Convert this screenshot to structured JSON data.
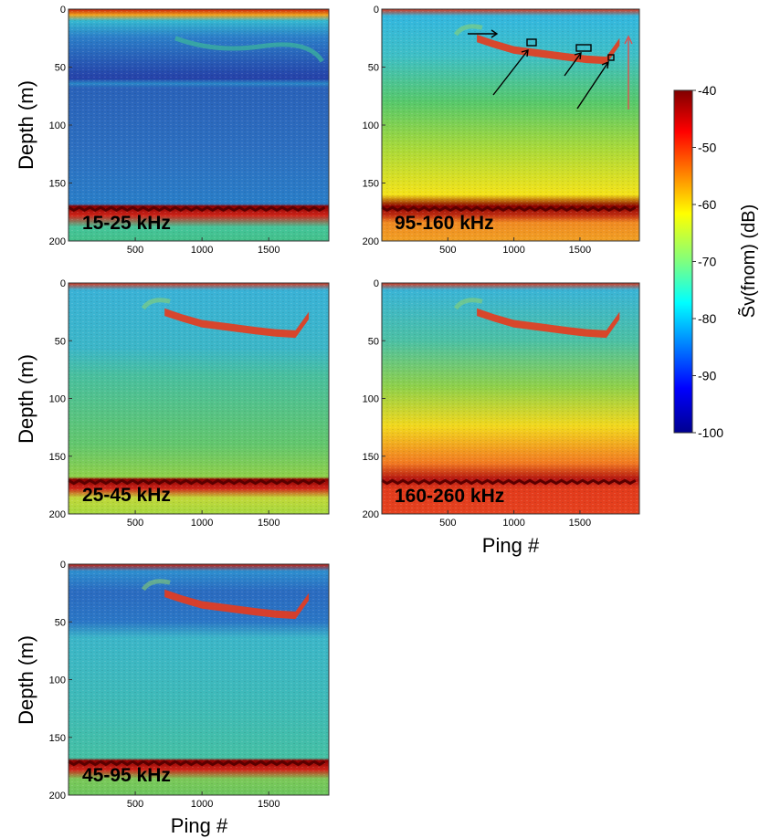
{
  "chart_data": {
    "type": "heatmap",
    "panels": [
      {
        "label": "15-25 kHz",
        "xlabel": "",
        "ylabel": "Depth (m)",
        "xticks": [
          500,
          1000,
          1500
        ],
        "yticks": [
          0,
          50,
          100,
          150,
          200
        ],
        "xlim": [
          0,
          1950
        ],
        "ylim": [
          0,
          200
        ],
        "deep_background_db": -85,
        "scattering_layer_db": -68,
        "seafloor_depth_m": 172,
        "seafloor_db": -40,
        "surface_db": -45
      },
      {
        "label": "95-160 kHz",
        "xlabel": "",
        "ylabel": "",
        "xticks": [
          500,
          1000,
          1500
        ],
        "yticks": [
          0,
          50,
          100,
          150,
          200
        ],
        "xlim": [
          0,
          1950
        ],
        "ylim": [
          0,
          200
        ],
        "shallow_background_db": -78,
        "deep_background_db": -62,
        "plume_db": -50,
        "seafloor_depth_m": 172,
        "seafloor_db": -40
      },
      {
        "label": "25-45 kHz",
        "xlabel": "",
        "ylabel": "Depth (m)",
        "xticks": [
          500,
          1000,
          1500
        ],
        "yticks": [
          0,
          50,
          100,
          150,
          200
        ],
        "xlim": [
          0,
          1950
        ],
        "ylim": [
          0,
          200
        ],
        "shallow_background_db": -80,
        "deep_background_db": -70,
        "plume_db": -50,
        "seafloor_depth_m": 172,
        "seafloor_db": -40
      },
      {
        "label": "160-260 kHz",
        "xlabel": "Ping #",
        "ylabel": "",
        "xticks": [
          500,
          1000,
          1500
        ],
        "yticks": [
          0,
          50,
          100,
          150,
          200
        ],
        "xlim": [
          0,
          1950
        ],
        "ylim": [
          0,
          200
        ],
        "shallow_background_db": -78,
        "deep_background_db": -52,
        "plume_db": -50,
        "seafloor_depth_m": 172,
        "seafloor_db": -48
      },
      {
        "label": "45-95 kHz",
        "xlabel": "Ping #",
        "ylabel": "Depth (m)",
        "xticks": [
          500,
          1000,
          1500
        ],
        "yticks": [
          0,
          50,
          100,
          150,
          200
        ],
        "xlim": [
          0,
          1950
        ],
        "ylim": [
          0,
          200
        ],
        "shallow_background_db": -82,
        "deep_background_db": -74,
        "plume_db": -50,
        "seafloor_depth_m": 172,
        "seafloor_db": -40
      }
    ],
    "plume_path": {
      "x": [
        720,
        850,
        1000,
        1200,
        1400,
        1550,
        1700,
        1800
      ],
      "depth_m": [
        25,
        30,
        35,
        38,
        41,
        43,
        44,
        28
      ]
    },
    "colorbar": {
      "label": "S̃v(fnom)   (dB)",
      "range": [
        -100,
        -40
      ],
      "ticks": [
        -40,
        -50,
        -60,
        -70,
        -80,
        -90,
        -100
      ],
      "colormap": "jet"
    },
    "annotations": {
      "black_arrows": 4,
      "boxes": 3,
      "red_arrow": 1,
      "panel": "95-160 kHz"
    },
    "colors": {
      "seafloor": "#7a0000",
      "plume": "#e83a1c",
      "red_arrow": "#e05050"
    }
  }
}
